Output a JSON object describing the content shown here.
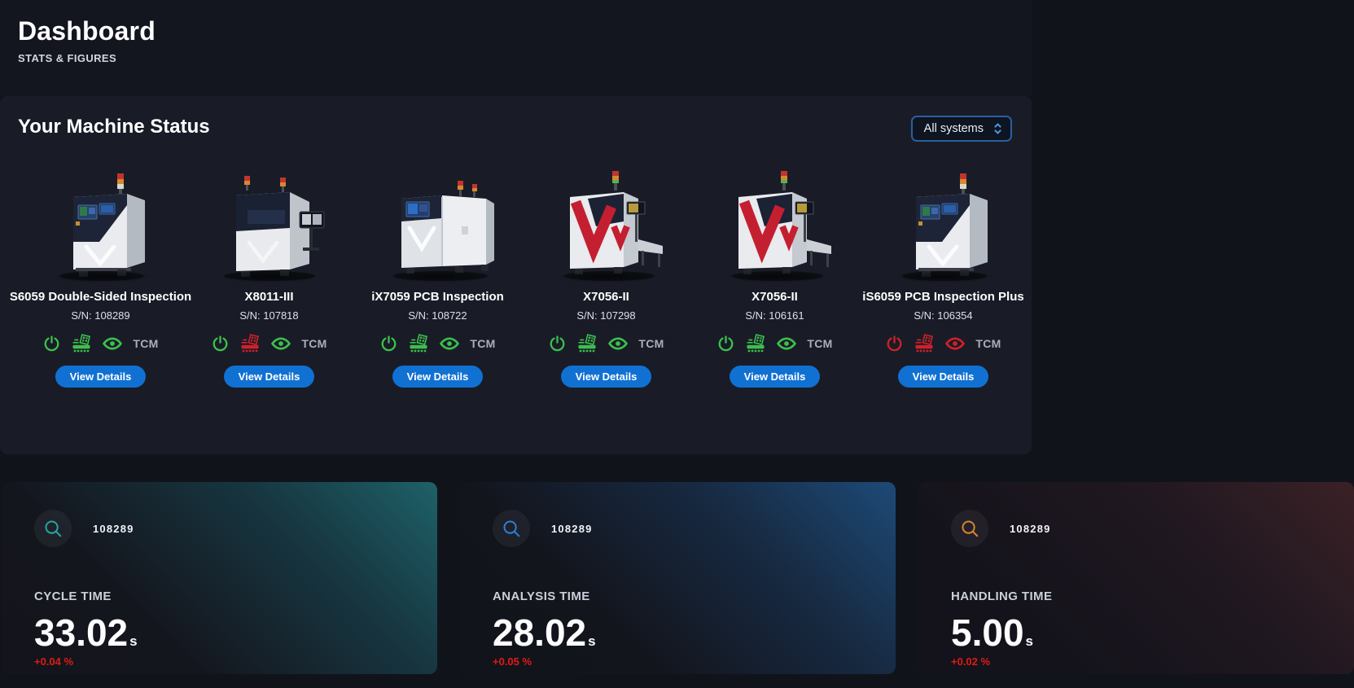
{
  "header": {
    "title": "Dashboard",
    "subtitle": "STATS & FIGURES"
  },
  "machine_section": {
    "title": "Your Machine Status",
    "filter_value": "All systems",
    "view_details": "View Details",
    "tcm": "TCM",
    "status_colors": {
      "ok": "#3cc04e",
      "error": "#d1202b"
    },
    "machines": [
      {
        "name": "S6059 Double-Sided Inspection",
        "serial": "S/N: 108289",
        "variant": "s6059",
        "power": "ok",
        "conveyor": "ok",
        "camera": "ok"
      },
      {
        "name": "X8011-III",
        "serial": "S/N: 107818",
        "variant": "x8011",
        "power": "ok",
        "conveyor": "error",
        "camera": "ok"
      },
      {
        "name": "iX7059 PCB Inspection",
        "serial": "S/N: 108722",
        "variant": "ix7059",
        "power": "ok",
        "conveyor": "ok",
        "camera": "ok"
      },
      {
        "name": "X7056-II",
        "serial": "S/N: 107298",
        "variant": "x7056",
        "power": "ok",
        "conveyor": "ok",
        "camera": "ok"
      },
      {
        "name": "X7056-II",
        "serial": "S/N: 106161",
        "variant": "x7056",
        "power": "ok",
        "conveyor": "ok",
        "camera": "ok"
      },
      {
        "name": "iS6059 PCB Inspection Plus",
        "serial": "S/N: 106354",
        "variant": "s6059",
        "power": "error",
        "conveyor": "error",
        "camera": "error"
      }
    ]
  },
  "stats_section": {
    "delta_color": "#e01b12",
    "cards": [
      {
        "machine_id": "108289",
        "label": "CYCLE TIME",
        "value": "33.02",
        "unit": "s",
        "delta": "+0.04 %",
        "theme": "teal",
        "accent": "#23a79f"
      },
      {
        "machine_id": "108289",
        "label": "ANALYSIS TIME",
        "value": "28.02",
        "unit": "s",
        "delta": "+0.05 %",
        "theme": "blue",
        "accent": "#2e7fd2"
      },
      {
        "machine_id": "108289",
        "label": "HANDLING TIME",
        "value": "5.00",
        "unit": "s",
        "delta": "+0.02 %",
        "theme": "amber",
        "accent": "#d8842f"
      }
    ]
  }
}
